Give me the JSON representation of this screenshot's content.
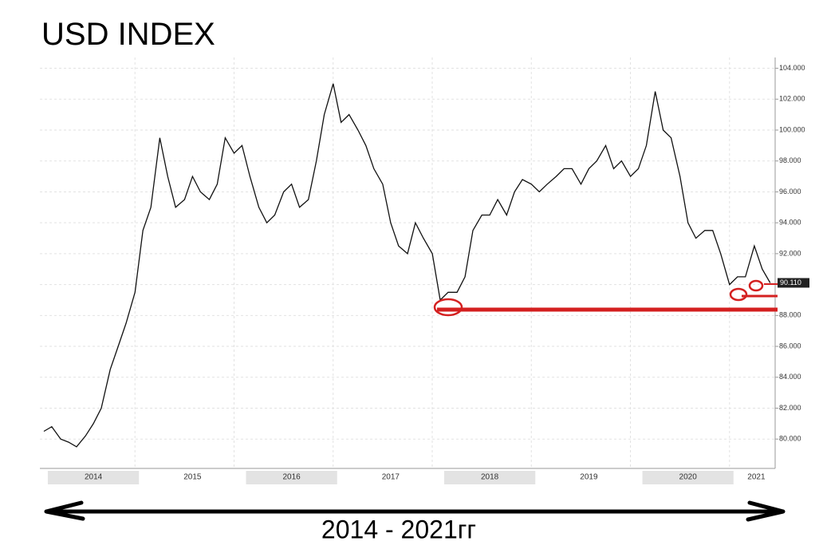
{
  "chart_data": {
    "type": "line",
    "title": "USD INDEX",
    "x_label": "2014 - 2021гг",
    "last_value_label": "90.110",
    "grid": true,
    "xlim": [
      2013.96,
      2021.38
    ],
    "xticks": [
      {
        "value": 2014.5,
        "label": "2014"
      },
      {
        "value": 2015.5,
        "label": "2015"
      },
      {
        "value": 2016.5,
        "label": "2016"
      },
      {
        "value": 2017.5,
        "label": "2017"
      },
      {
        "value": 2018.5,
        "label": "2018"
      },
      {
        "value": 2019.5,
        "label": "2019"
      },
      {
        "value": 2020.5,
        "label": "2020"
      },
      {
        "value": 2021.5,
        "label": "2021"
      }
    ],
    "ylim": [
      78.1,
      104.7
    ],
    "yticks": [
      {
        "value": 80,
        "label": "80.000"
      },
      {
        "value": 82,
        "label": "82.000"
      },
      {
        "value": 84,
        "label": "84.000"
      },
      {
        "value": 86,
        "label": "86.000"
      },
      {
        "value": 88,
        "label": "88.000"
      },
      {
        "value": 90,
        "label": "90.000"
      },
      {
        "value": 92,
        "label": "92.000"
      },
      {
        "value": 94,
        "label": "94.000"
      },
      {
        "value": 96,
        "label": "96.000"
      },
      {
        "value": 98,
        "label": "98.000"
      },
      {
        "value": 100,
        "label": "100.000"
      },
      {
        "value": 102,
        "label": "102.000"
      },
      {
        "value": 104,
        "label": "104.000"
      }
    ],
    "x": [
      2014.0,
      2014.08,
      2014.17,
      2014.25,
      2014.33,
      2014.42,
      2014.5,
      2014.58,
      2014.67,
      2014.75,
      2014.83,
      2014.92,
      2015.0,
      2015.08,
      2015.17,
      2015.25,
      2015.33,
      2015.42,
      2015.5,
      2015.58,
      2015.67,
      2015.75,
      2015.83,
      2015.92,
      2016.0,
      2016.08,
      2016.17,
      2016.25,
      2016.33,
      2016.42,
      2016.5,
      2016.58,
      2016.67,
      2016.75,
      2016.83,
      2016.92,
      2017.0,
      2017.08,
      2017.17,
      2017.25,
      2017.33,
      2017.42,
      2017.5,
      2017.58,
      2017.67,
      2017.75,
      2017.83,
      2017.92,
      2018.0,
      2018.08,
      2018.17,
      2018.25,
      2018.33,
      2018.42,
      2018.5,
      2018.58,
      2018.67,
      2018.75,
      2018.83,
      2018.92,
      2019.0,
      2019.08,
      2019.17,
      2019.25,
      2019.33,
      2019.42,
      2019.5,
      2019.58,
      2019.67,
      2019.75,
      2019.83,
      2019.92,
      2020.0,
      2020.08,
      2020.17,
      2020.25,
      2020.33,
      2020.42,
      2020.5,
      2020.58,
      2020.67,
      2020.75,
      2020.83,
      2020.92,
      2021.0,
      2021.08,
      2021.17,
      2021.25,
      2021.33
    ],
    "series": [
      {
        "name": "USD INDEX",
        "color": "#111111",
        "values": [
          80.5,
          80.8,
          80.0,
          79.8,
          79.5,
          80.2,
          81.0,
          82.0,
          84.5,
          86.0,
          87.5,
          89.5,
          93.5,
          95.0,
          99.5,
          97.0,
          95.0,
          95.5,
          97.0,
          96.0,
          95.5,
          96.5,
          99.5,
          98.5,
          99.0,
          97.0,
          95.0,
          94.0,
          94.5,
          96.0,
          96.5,
          95.0,
          95.5,
          98.0,
          101.0,
          103.0,
          100.5,
          101.0,
          100.0,
          99.0,
          97.5,
          96.5,
          94.0,
          92.5,
          92.0,
          94.0,
          93.0,
          92.0,
          89.0,
          89.5,
          89.5,
          90.5,
          93.5,
          94.5,
          94.5,
          95.5,
          94.5,
          96.0,
          96.8,
          96.5,
          96.0,
          96.5,
          97.0,
          97.5,
          97.5,
          96.5,
          97.5,
          98.0,
          99.0,
          97.5,
          98.0,
          97.0,
          97.5,
          99.0,
          102.5,
          100.0,
          99.5,
          97.0,
          94.0,
          93.0,
          93.5,
          93.5,
          92.0,
          90.0,
          90.5,
          90.5,
          92.5,
          91.0,
          90.11
        ]
      }
    ]
  }
}
